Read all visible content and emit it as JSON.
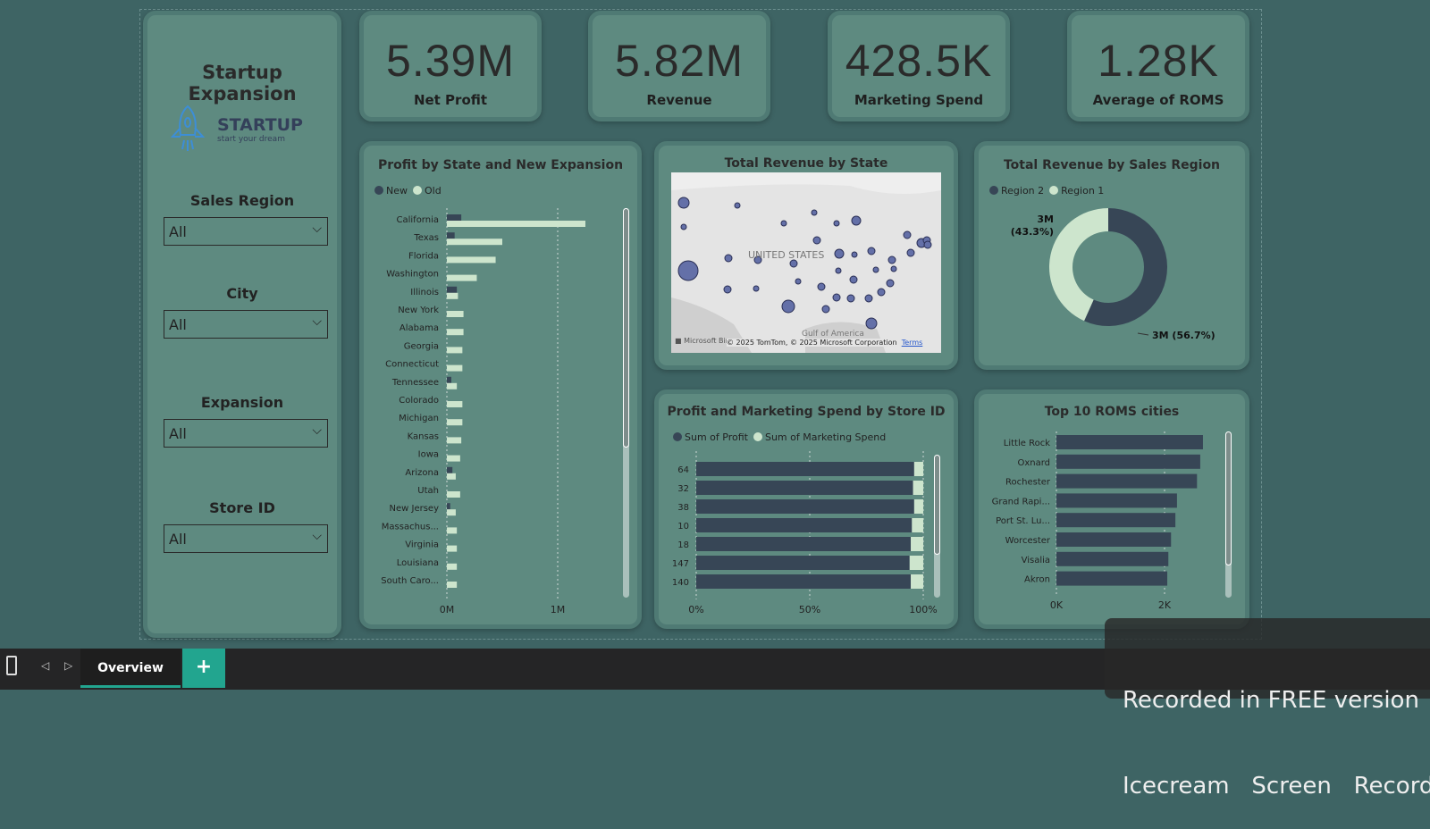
{
  "sidebar": {
    "title": "Startup Expansion",
    "logo": {
      "name": "STARTUP",
      "tagline": "start your dream"
    },
    "slicers": [
      {
        "label": "Sales Region",
        "value": "All"
      },
      {
        "label": "City",
        "value": "All"
      },
      {
        "label": "Expansion",
        "value": "All"
      },
      {
        "label": "Store ID",
        "value": "All"
      }
    ]
  },
  "kpis": [
    {
      "value": "5.39M",
      "label": "Net Profit"
    },
    {
      "value": "5.82M",
      "label": "Revenue"
    },
    {
      "value": "428.5K",
      "label": "Marketing Spend"
    },
    {
      "value": "1.28K",
      "label": "Average of ROMS"
    }
  ],
  "colors": {
    "dark": "#374656",
    "light": "#cde5cd",
    "card": "#5e8a80",
    "background": "#3e6464"
  },
  "map": {
    "title": "Total Revenue by State",
    "label": "UNITED STATES",
    "gulf": "Gulf of America",
    "attribution": "© 2025 TomTom, © 2025 Microsoft Corporation",
    "terms": "Terms",
    "brand": "Microsoft Bing"
  },
  "chart_data": [
    {
      "type": "bar",
      "title": "Profit by State and New Expansion",
      "legend": "top-left",
      "xlim": [
        0,
        1.35
      ],
      "xticks": [
        "0M",
        "1M"
      ],
      "categories": [
        "California",
        "Texas",
        "Florida",
        "Washington",
        "Illinois",
        "New York",
        "Alabama",
        "Georgia",
        "Connecticut",
        "Tennessee",
        "Colorado",
        "Michigan",
        "Kansas",
        "Iowa",
        "Arizona",
        "Utah",
        "New Jersey",
        "Massachus...",
        "Virginia",
        "Louisiana",
        "South Caro..."
      ],
      "series": [
        {
          "name": "New",
          "values": [
            0.13,
            0.07,
            0,
            0,
            0.09,
            0,
            0,
            0,
            0,
            0.04,
            0,
            0,
            0,
            0,
            0.05,
            0,
            0.03,
            0,
            0,
            0,
            0
          ]
        },
        {
          "name": "Old",
          "values": [
            1.25,
            0.5,
            0.44,
            0.27,
            0.1,
            0.15,
            0.15,
            0.14,
            0.14,
            0.09,
            0.14,
            0.14,
            0.13,
            0.12,
            0.08,
            0.12,
            0.08,
            0.09,
            0.09,
            0.09,
            0.09
          ]
        }
      ]
    },
    {
      "type": "pie",
      "title": "Total Revenue by Sales Region",
      "legend": "top-left",
      "donut": true,
      "series": [
        {
          "name": "Region 2",
          "value": 3.3,
          "label": "3M (56.7%)",
          "percent": 56.7
        },
        {
          "name": "Region 1",
          "value": 2.52,
          "label": "3M\n(43.3%)",
          "percent": 43.3
        }
      ]
    },
    {
      "type": "bar",
      "stacked_percent": true,
      "title": "Profit and Marketing Spend by Store ID",
      "legend": "top-left",
      "xticks": [
        "0%",
        "50%",
        "100%"
      ],
      "categories": [
        "64",
        "32",
        "38",
        "10",
        "18",
        "147",
        "140"
      ],
      "series": [
        {
          "name": "Sum of Profit",
          "values": [
            96,
            95.5,
            96,
            95,
            94.5,
            94,
            94.5
          ]
        },
        {
          "name": "Sum of Marketing Spend",
          "values": [
            4,
            4.5,
            4,
            5,
            5.5,
            6,
            5.5
          ]
        }
      ]
    },
    {
      "type": "bar",
      "title": "Top 10 ROMS cities",
      "xticks": [
        "0K",
        "2K"
      ],
      "xlim": [
        0,
        3
      ],
      "categories": [
        "Little Rock",
        "Oxnard",
        "Rochester",
        "Grand Rapi...",
        "Port St. Lu...",
        "Worcester",
        "Visalia",
        "Akron"
      ],
      "values": [
        2.71,
        2.66,
        2.6,
        2.23,
        2.2,
        2.12,
        2.07,
        2.05
      ]
    }
  ],
  "bottom_bar": {
    "tab": "Overview",
    "add": "+"
  },
  "watermark": {
    "line1": "Recorded in FREE version",
    "line2": "Icecream   Screen   Recorder"
  }
}
